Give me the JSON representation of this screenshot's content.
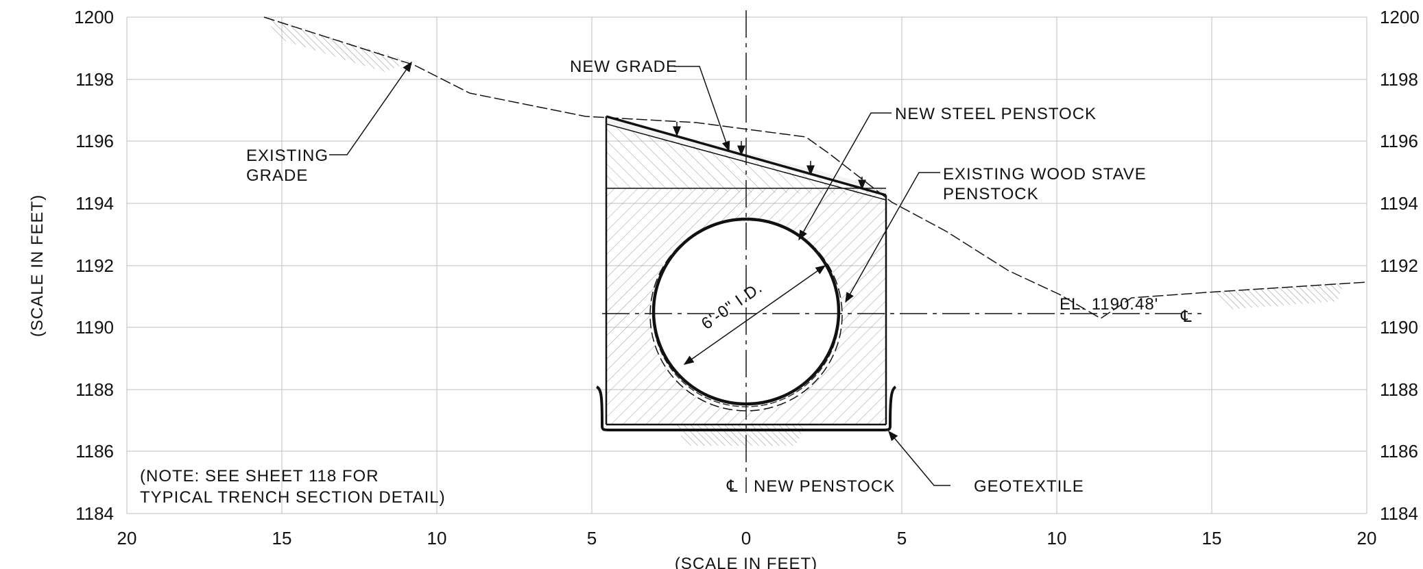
{
  "axes": {
    "x_title": "(SCALE IN FEET)",
    "y_title": "(SCALE IN FEET)",
    "x_ticks": [
      "20",
      "15",
      "10",
      "5",
      "0",
      "5",
      "10",
      "15",
      "20"
    ],
    "y_ticks_left": [
      "1200",
      "1198",
      "1196",
      "1194",
      "1192",
      "1190",
      "1188",
      "1186",
      "1184"
    ],
    "y_ticks_right": [
      "1200",
      "1198",
      "1196",
      "1194",
      "1192",
      "1190",
      "1188",
      "1186",
      "1184"
    ]
  },
  "labels": {
    "new_grade": "NEW GRADE",
    "new_steel_penstock": "NEW STEEL PENSTOCK",
    "existing_wood_1": "EXISTING WOOD STAVE",
    "existing_wood_2": "PENSTOCK",
    "existing_grade_1": "EXISTING",
    "existing_grade_2": "GRADE",
    "diameter": "6'-0\" I.D.",
    "elevation": "EL. 1190.48'",
    "centerline_symbol": "℄",
    "new_penstock": "NEW PENSTOCK",
    "geotextile": "GEOTEXTILE",
    "note_1": "(NOTE: SEE SHEET 118 FOR",
    "note_2": "TYPICAL TRENCH SECTION DETAIL)"
  },
  "chart_data": {
    "type": "section",
    "x_range": [
      -20,
      20
    ],
    "y_range": [
      1184,
      1200
    ],
    "existing_grade": [
      [
        -15.5,
        1200
      ],
      [
        -11,
        1198.6
      ],
      [
        -9,
        1197.6
      ],
      [
        -5,
        1196.8
      ],
      [
        -2,
        1196.6
      ],
      [
        1,
        1196.4
      ],
      [
        2,
        1196.1
      ],
      [
        4.5,
        1194.4
      ],
      [
        6,
        1193.3
      ],
      [
        8,
        1192.4
      ],
      [
        10,
        1191.1
      ],
      [
        11.5,
        1190.3
      ],
      [
        13,
        1191.1
      ],
      [
        20,
        1191.5
      ]
    ],
    "new_grade": [
      [
        -4.5,
        1196.8
      ],
      [
        4.5,
        1194.3
      ]
    ],
    "trench": {
      "left": -4.5,
      "right": 4.5,
      "bottom": 1187
    },
    "pipe": {
      "center_x": 0,
      "center_y": 1190.5,
      "inside_diameter_ft": 6
    },
    "water_elevation": 1190.48
  }
}
